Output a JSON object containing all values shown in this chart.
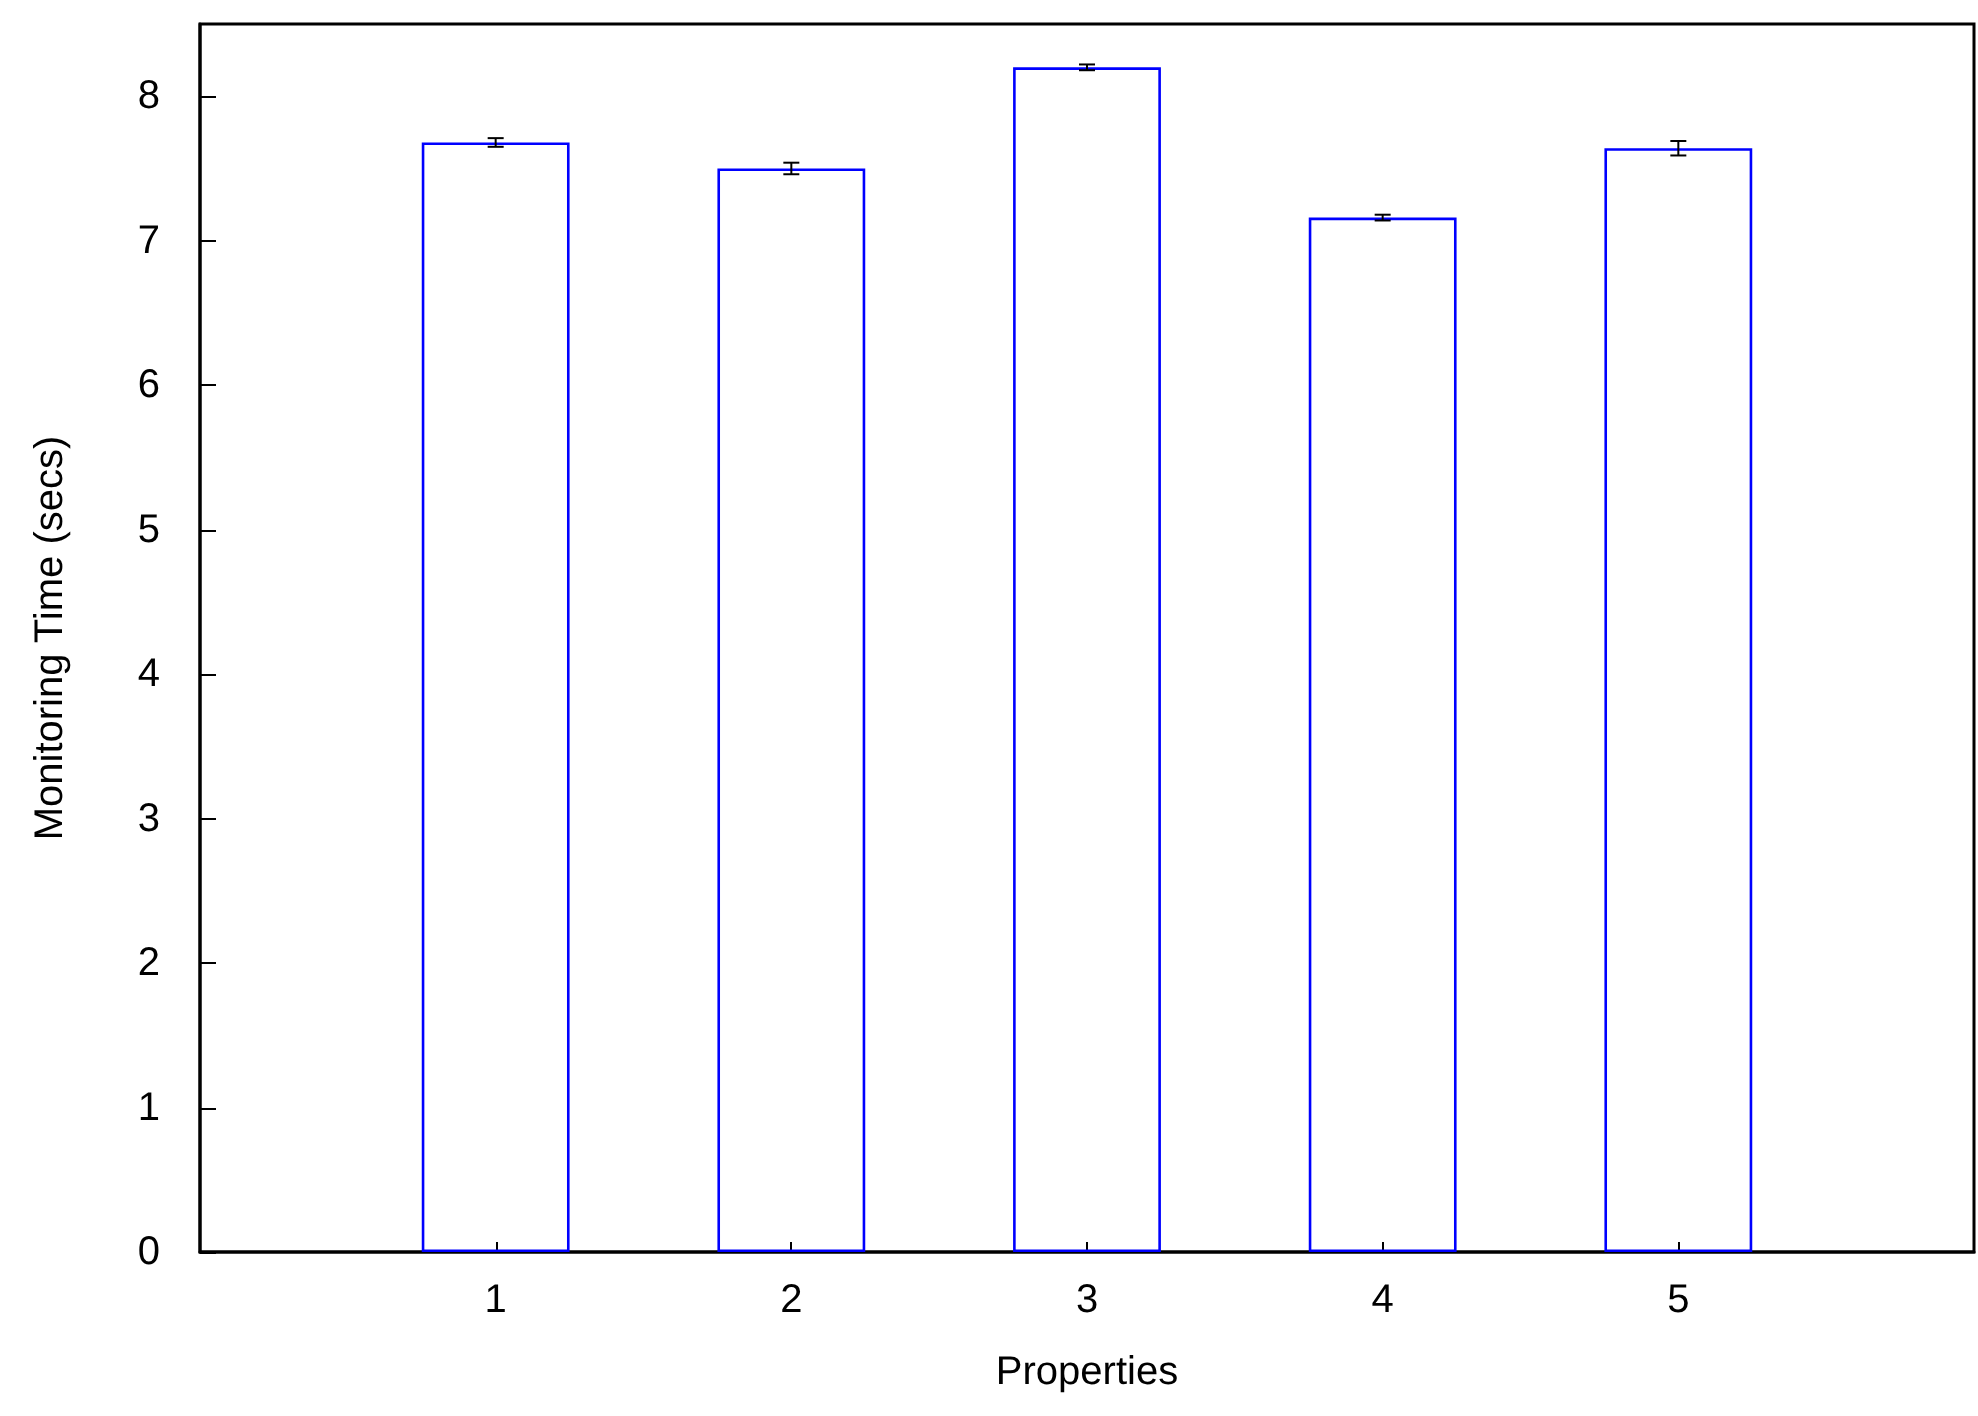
{
  "chart_data": {
    "type": "bar",
    "xlabel": "Properties",
    "ylabel": "Monitoring Time (secs)",
    "x": [
      1,
      2,
      3,
      4,
      5
    ],
    "xlim": [
      0,
      6
    ],
    "xticks": [
      1,
      2,
      3,
      4,
      5
    ],
    "series": [
      {
        "color": "#0000ff",
        "values": [
          7.68,
          7.5,
          8.2,
          7.16,
          7.64
        ],
        "errors": [
          0.03,
          0.04,
          0.02,
          0.02,
          0.05
        ]
      }
    ],
    "ylim": [
      0,
      8.5
    ],
    "yticks": [
      0,
      1,
      2,
      3,
      4,
      5,
      6,
      7,
      8
    ],
    "grid": false
  }
}
